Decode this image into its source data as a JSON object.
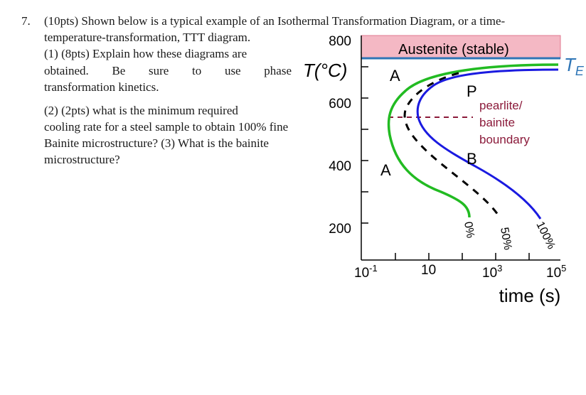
{
  "question": {
    "number": "7.",
    "line1": "(10pts) Shown below is a typical example of an Isothermal Transformation Diagram, or a time-",
    "line2": "temperature-transformation,   TTT   diagram.",
    "line3": "(1) (8pts) Explain how these diagrams are",
    "line4_words": [
      "obtained.",
      "Be",
      "sure",
      "to",
      "use",
      "phase"
    ],
    "line5": "transformation kinetics.",
    "line6": "(2)  (2pts)  what  is  the  minimum  required",
    "line7": "cooling rate for a steel sample to obtain 100% fine",
    "line8": "Bainite microstructure?   (3)  What  is  the  bainite",
    "line9": "microstructure?"
  },
  "diagram": {
    "y_axis_label": "T(°C)",
    "y_ticks": [
      "800",
      "600",
      "400",
      "200"
    ],
    "x_ticks": [
      {
        "base": "10",
        "exp": "-1"
      },
      {
        "base": "10",
        "exp": ""
      },
      {
        "base": "10",
        "exp": "3"
      },
      {
        "base": "10",
        "exp": "5"
      }
    ],
    "x_axis_label": "time (s)",
    "austenite_label": "Austenite (stable)",
    "te_label": "T",
    "te_subscript": "E",
    "region_labels": {
      "a_upper": "A",
      "a_lower": "A",
      "p": "P",
      "b": "B"
    },
    "boundary_label_lines": [
      "pearlite/",
      "bainite",
      "boundary"
    ],
    "curve_labels": {
      "start": "0%",
      "mid": "50%",
      "end": "100%"
    },
    "colors": {
      "austenite_fill": "#f4b8c4",
      "te_line": "#2e75b6",
      "start_curve": "#22bb22",
      "end_curve": "#1a1ae0",
      "mid_curve": "#000000",
      "boundary_line": "#8b1a3a"
    }
  }
}
